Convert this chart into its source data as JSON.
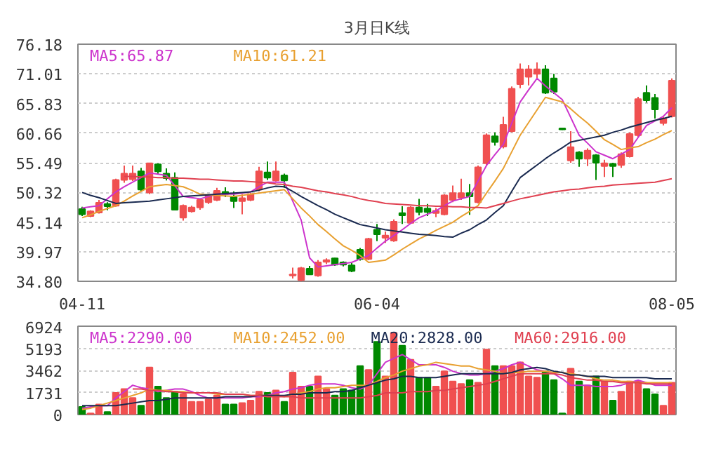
{
  "chart_data": [
    {
      "type": "candlestick",
      "title": "3月日K线",
      "grid": "y",
      "ylim": [
        34.8,
        76.18
      ],
      "yticks": [
        {
          "value": 34.8,
          "label": "34.80"
        },
        39.97,
        45.14,
        50.32,
        55.49,
        60.66,
        65.83,
        71.01,
        76.18
      ],
      "categories": [
        "04-11",
        null,
        null,
        null,
        null,
        null,
        null,
        null,
        null,
        null,
        null,
        null,
        null,
        null,
        null,
        null,
        null,
        null,
        null,
        null,
        null,
        null,
        null,
        null,
        null,
        null,
        null,
        null,
        null,
        null,
        null,
        null,
        null,
        null,
        null,
        "06-04",
        null,
        null,
        null,
        null,
        null,
        null,
        null,
        null,
        null,
        null,
        null,
        null,
        null,
        null,
        null,
        null,
        null,
        null,
        null,
        null,
        null,
        null,
        null,
        null,
        null,
        null,
        null,
        null,
        null,
        null,
        null,
        null,
        null,
        null,
        "08-05"
      ],
      "ohlc": [
        [
          47.4,
          47.8,
          46.2,
          46.5
        ],
        [
          46.2,
          47.2,
          46.0,
          47.0
        ],
        [
          46.8,
          49.0,
          46.6,
          48.5
        ],
        [
          48.3,
          48.6,
          47.2,
          47.9
        ],
        [
          48.0,
          52.7,
          47.8,
          52.5
        ],
        [
          52.5,
          55.0,
          52.0,
          53.6
        ],
        [
          52.6,
          55.0,
          52.3,
          53.6
        ],
        [
          54.0,
          54.6,
          50.5,
          50.8
        ],
        [
          50.3,
          55.5,
          50.0,
          55.4
        ],
        [
          55.2,
          55.4,
          53.5,
          54.0
        ],
        [
          53.6,
          54.5,
          52.4,
          52.8
        ],
        [
          52.9,
          53.8,
          47.2,
          47.3
        ],
        [
          45.9,
          48.2,
          45.4,
          48.0
        ],
        [
          47.0,
          48.0,
          46.8,
          47.7
        ],
        [
          47.7,
          49.2,
          47.3,
          49.0
        ],
        [
          48.6,
          50.0,
          48.3,
          49.8
        ],
        [
          49.0,
          51.1,
          48.8,
          50.6
        ],
        [
          50.4,
          51.2,
          49.5,
          50.0
        ],
        [
          49.5,
          50.5,
          47.6,
          48.8
        ],
        [
          48.8,
          50.0,
          46.5,
          49.3
        ],
        [
          49.0,
          50.2,
          48.8,
          50.0
        ],
        [
          50.8,
          54.8,
          50.5,
          54.0
        ],
        [
          53.8,
          55.7,
          52.5,
          52.9
        ],
        [
          52.4,
          55.7,
          52.2,
          54.0
        ],
        [
          53.3,
          53.6,
          51.1,
          52.4
        ],
        [
          35.8,
          37.2,
          35.3,
          36.0
        ],
        [
          35.0,
          37.3,
          34.8,
          37.1
        ],
        [
          37.0,
          37.5,
          35.9,
          36.0
        ],
        [
          35.8,
          38.5,
          35.6,
          38.1
        ],
        [
          38.2,
          38.8,
          37.8,
          38.5
        ],
        [
          38.8,
          38.9,
          37.5,
          37.7
        ],
        [
          38.1,
          38.3,
          37.4,
          37.7
        ],
        [
          37.6,
          38.0,
          36.4,
          36.6
        ],
        [
          40.3,
          40.6,
          38.4,
          38.7
        ],
        [
          38.7,
          42.4,
          38.5,
          42.2
        ],
        [
          43.8,
          44.8,
          41.8,
          43.0
        ],
        [
          42.4,
          43.5,
          41.5,
          42.8
        ],
        [
          41.9,
          45.6,
          41.7,
          45.2
        ],
        [
          46.7,
          47.9,
          44.8,
          46.3
        ],
        [
          45.0,
          47.9,
          44.9,
          47.7
        ],
        [
          47.7,
          49.2,
          46.3,
          46.9
        ],
        [
          47.5,
          48.3,
          46.2,
          46.9
        ],
        [
          46.7,
          47.6,
          46.0,
          47.1
        ],
        [
          46.5,
          50.0,
          46.3,
          49.8
        ],
        [
          49.0,
          51.5,
          48.6,
          50.2
        ],
        [
          49.4,
          52.7,
          49.0,
          50.2
        ],
        [
          50.2,
          51.8,
          46.4,
          49.6
        ],
        [
          48.6,
          55.0,
          48.4,
          54.7
        ],
        [
          55.4,
          60.6,
          55.0,
          60.3
        ],
        [
          60.1,
          60.8,
          58.5,
          59.1
        ],
        [
          58.3,
          63.5,
          58.0,
          62.1
        ],
        [
          61.0,
          68.8,
          60.8,
          68.4
        ],
        [
          69.2,
          72.8,
          68.5,
          71.8
        ],
        [
          70.5,
          72.5,
          69.0,
          71.8
        ],
        [
          71.0,
          73.0,
          70.2,
          71.8
        ],
        [
          71.8,
          72.5,
          67.5,
          67.7
        ],
        [
          70.2,
          71.0,
          67.5,
          67.9
        ],
        [
          61.5,
          61.6,
          61.2,
          61.3
        ],
        [
          55.9,
          61.0,
          55.5,
          58.2
        ],
        [
          57.3,
          57.5,
          54.8,
          56.2
        ],
        [
          56.2,
          58.0,
          54.9,
          57.6
        ],
        [
          56.8,
          57.0,
          52.5,
          55.5
        ],
        [
          54.9,
          56.0,
          53.0,
          55.4
        ],
        [
          55.3,
          55.5,
          53.0,
          54.9
        ],
        [
          55.1,
          57.3,
          54.6,
          57.0
        ],
        [
          56.6,
          60.8,
          56.4,
          60.5
        ],
        [
          60.3,
          67.0,
          60.0,
          66.6
        ],
        [
          67.7,
          69.0,
          66.0,
          66.4
        ],
        [
          66.8,
          67.5,
          63.2,
          64.8
        ],
        [
          62.4,
          63.5,
          62.0,
          63.2
        ],
        [
          63.6,
          70.2,
          63.4,
          69.8
        ]
      ],
      "colors": [
        "#008800",
        "#f05050",
        "#f05050",
        "#008800",
        "#f05050",
        "#f05050",
        "#f05050",
        "#008800",
        "#f05050",
        "#008800",
        "#008800",
        "#008800",
        "#f05050",
        "#f05050",
        "#f05050",
        "#f05050",
        "#f05050",
        "#008800",
        "#008800",
        "#f05050",
        "#f05050",
        "#f05050",
        "#008800",
        "#f05050",
        "#008800",
        "#f05050",
        "#f05050",
        "#008800",
        "#f05050",
        "#f05050",
        "#008800",
        "#008800",
        "#008800",
        "#008800",
        "#f05050",
        "#008800",
        "#f05050",
        "#f05050",
        "#008800",
        "#f05050",
        "#008800",
        "#008800",
        "#f05050",
        "#f05050",
        "#f05050",
        "#f05050",
        "#008800",
        "#f05050",
        "#f05050",
        "#008800",
        "#f05050",
        "#f05050",
        "#f05050",
        "#f05050",
        "#f05050",
        "#008800",
        "#008800",
        "#008800",
        "#f05050",
        "#008800",
        "#f05050",
        "#008800",
        "#f05050",
        "#008800",
        "#f05050",
        "#f05050",
        "#f05050",
        "#008800",
        "#008800",
        "#f05050",
        "#f05050"
      ],
      "series": [
        {
          "type": "line",
          "name": "MA5:65.87",
          "color": "#cc33cc",
          "values": [
            47.6,
            47.8,
            48.0,
            49.2,
            50.4,
            51.3,
            52.1,
            52.9,
            53.7,
            53.5,
            53.3,
            51.5,
            49.6,
            49.4,
            49.2,
            49.6,
            50.0,
            50.0,
            50.0,
            50.2,
            50.4,
            51.3,
            52.1,
            52.1,
            52.1,
            48.8,
            45.5,
            38.9,
            37.3,
            37.5,
            37.7,
            37.9,
            38.1,
            38.7,
            39.3,
            40.6,
            41.8,
            42.8,
            43.8,
            44.9,
            45.9,
            46.5,
            47.1,
            48.0,
            48.8,
            49.2,
            49.6,
            52.3,
            55.0,
            56.9,
            58.7,
            62.4,
            66.1,
            68.2,
            70.2,
            68.9,
            67.7,
            66.5,
            63.4,
            60.3,
            58.9,
            57.4,
            56.8,
            56.2,
            57.0,
            57.8,
            59.9,
            62.0,
            62.8,
            63.6,
            65.1
          ]
        },
        {
          "type": "line",
          "name": "MA10:61.21",
          "color": "#e8a030",
          "values": [
            45.9,
            46.4,
            47.0,
            47.5,
            48.0,
            48.8,
            49.7,
            50.5,
            51.3,
            51.5,
            51.7,
            51.5,
            51.3,
            50.7,
            50.0,
            49.9,
            49.8,
            49.7,
            49.6,
            49.8,
            50.0,
            50.2,
            50.4,
            50.6,
            50.8,
            49.2,
            47.6,
            46.2,
            44.7,
            43.5,
            42.2,
            41.0,
            40.2,
            39.3,
            38.1,
            38.3,
            38.5,
            39.4,
            40.4,
            41.3,
            42.2,
            42.9,
            43.7,
            44.4,
            45.1,
            46.1,
            47.0,
            48.0,
            50.2,
            52.3,
            54.5,
            57.4,
            60.3,
            62.5,
            64.7,
            66.9,
            66.5,
            66.1,
            64.9,
            63.6,
            62.4,
            61.0,
            59.5,
            58.7,
            57.8,
            58.1,
            58.3,
            59.0,
            59.6,
            60.4,
            61.1
          ]
        },
        {
          "type": "line",
          "color": "#1a2a50",
          "values": [
            50.3,
            49.8,
            49.4,
            48.9,
            48.4,
            48.5,
            48.6,
            48.7,
            48.8,
            49.0,
            49.2,
            49.4,
            49.6,
            49.7,
            49.8,
            49.9,
            50.0,
            50.1,
            50.2,
            50.3,
            50.4,
            50.7,
            51.1,
            51.4,
            51.3,
            50.5,
            49.6,
            48.8,
            48.0,
            47.3,
            46.5,
            45.9,
            45.3,
            44.7,
            44.4,
            44.1,
            43.8,
            43.6,
            43.4,
            43.2,
            43.0,
            42.9,
            42.8,
            42.6,
            42.5,
            43.2,
            43.8,
            44.7,
            45.5,
            46.8,
            48.0,
            50.5,
            52.9,
            54.0,
            55.1,
            56.2,
            57.2,
            58.1,
            59.1,
            59.4,
            59.7,
            60.0,
            60.3,
            60.8,
            61.2,
            61.7,
            62.1,
            62.5,
            62.9,
            63.2,
            63.6
          ]
        },
        {
          "type": "line",
          "color": "#e04050",
          "values": [
            null,
            null,
            null,
            null,
            null,
            53.1,
            53.1,
            53.0,
            53.0,
            52.9,
            52.9,
            52.8,
            52.8,
            52.7,
            52.6,
            52.6,
            52.5,
            52.4,
            52.3,
            52.3,
            52.2,
            52.1,
            52.0,
            51.8,
            51.7,
            51.4,
            51.2,
            50.9,
            50.6,
            50.4,
            50.1,
            49.9,
            49.6,
            49.2,
            48.9,
            48.7,
            48.4,
            48.3,
            48.2,
            48.1,
            48.0,
            48.0,
            47.9,
            47.9,
            47.8,
            47.8,
            47.7,
            47.7,
            47.6,
            48.0,
            48.4,
            48.8,
            49.2,
            49.5,
            49.8,
            50.1,
            50.4,
            50.6,
            50.8,
            50.9,
            51.1,
            51.3,
            51.4,
            51.6,
            51.7,
            51.8,
            51.9,
            52.0,
            52.1,
            52.4,
            52.7
          ]
        }
      ]
    },
    {
      "type": "bar",
      "grid": "y",
      "tick_labels": "y",
      "ylim": [
        0,
        6924
      ],
      "yticks": [
        0,
        1731,
        3462,
        5193,
        6924
      ],
      "categories": [
        null,
        null,
        null,
        null,
        null,
        null,
        null,
        null,
        null,
        null,
        null,
        null,
        null,
        null,
        null,
        null,
        null,
        null,
        null,
        null,
        null,
        null,
        null,
        null,
        null,
        null,
        null,
        null,
        null,
        null,
        null,
        null,
        null,
        null,
        null,
        null,
        null,
        null,
        null,
        null,
        null,
        null,
        null,
        null,
        null,
        null,
        null,
        null,
        null,
        null,
        null,
        null,
        null,
        null,
        null,
        null,
        null,
        null,
        null,
        null,
        null,
        null,
        null,
        null,
        null,
        null,
        null,
        null,
        null,
        null,
        null
      ],
      "values": [
        600,
        100,
        800,
        200,
        1700,
        2000,
        1300,
        700,
        3700,
        2200,
        1300,
        1800,
        1600,
        1000,
        1000,
        1200,
        1500,
        800,
        800,
        900,
        1100,
        1800,
        1700,
        1900,
        1000,
        3300,
        2200,
        2200,
        3000,
        2000,
        1500,
        2000,
        1900,
        3800,
        3500,
        5700,
        3000,
        6400,
        5400,
        4300,
        2900,
        2900,
        2200,
        3400,
        2600,
        2400,
        2700,
        2500,
        5100,
        3800,
        3800,
        3800,
        4100,
        3000,
        2900,
        3400,
        2700,
        100,
        3600,
        2600,
        2300,
        3000,
        2600,
        1100,
        1800,
        2600,
        2600,
        2000,
        1600,
        700,
        2500
      ],
      "colors": [
        "#008800",
        "#f05050",
        "#f05050",
        "#008800",
        "#f05050",
        "#f05050",
        "#f05050",
        "#008800",
        "#f05050",
        "#008800",
        "#008800",
        "#008800",
        "#f05050",
        "#f05050",
        "#f05050",
        "#f05050",
        "#f05050",
        "#008800",
        "#008800",
        "#f05050",
        "#f05050",
        "#f05050",
        "#008800",
        "#f05050",
        "#008800",
        "#f05050",
        "#f05050",
        "#008800",
        "#f05050",
        "#f05050",
        "#008800",
        "#008800",
        "#008800",
        "#008800",
        "#f05050",
        "#008800",
        "#f05050",
        "#f05050",
        "#008800",
        "#f05050",
        "#008800",
        "#008800",
        "#f05050",
        "#f05050",
        "#f05050",
        "#f05050",
        "#008800",
        "#f05050",
        "#f05050",
        "#008800",
        "#f05050",
        "#f05050",
        "#f05050",
        "#f05050",
        "#f05050",
        "#008800",
        "#008800",
        "#008800",
        "#f05050",
        "#008800",
        "#f05050",
        "#008800",
        "#f05050",
        "#008800",
        "#f05050",
        "#f05050",
        "#f05050",
        "#008800",
        "#008800",
        "#f05050",
        "#f05050"
      ],
      "series": [
        {
          "type": "line",
          "name": "MA5:2290.00",
          "color": "#cc33cc",
          "values": [
            500,
            600,
            700,
            700,
            1300,
            1800,
            2300,
            2100,
            2000,
            1800,
            1900,
            2000,
            2000,
            1800,
            1500,
            1300,
            1300,
            1300,
            1300,
            1300,
            1400,
            1400,
            1500,
            1700,
            1800,
            2000,
            2100,
            2300,
            2400,
            2400,
            2400,
            2300,
            2100,
            2000,
            2300,
            3200,
            4100,
            4400,
            4700,
            4300,
            3900,
            3900,
            3900,
            3700,
            3400,
            3200,
            3100,
            3100,
            3200,
            3400,
            3600,
            3900,
            4100,
            3800,
            3500,
            3400,
            3200,
            2800,
            2300,
            2300,
            2300,
            2200,
            2200,
            2200,
            2300,
            2500,
            2700,
            2500,
            2300,
            2300,
            2300
          ]
        },
        {
          "type": "line",
          "name": "MA10:2452.00",
          "color": "#e8a030",
          "values": [
            400,
            500,
            700,
            900,
            1100,
            1300,
            1500,
            1700,
            2000,
            1900,
            1900,
            1800,
            1800,
            1700,
            1700,
            1700,
            1600,
            1600,
            1600,
            1600,
            1500,
            1500,
            1500,
            1500,
            1400,
            1600,
            1700,
            1800,
            2000,
            2100,
            2100,
            2200,
            2300,
            2300,
            2300,
            2600,
            2900,
            3100,
            3400,
            3600,
            3800,
            3900,
            4100,
            4000,
            3900,
            3800,
            3800,
            3600,
            3500,
            3400,
            3200,
            3300,
            3300,
            3400,
            3400,
            3400,
            3300,
            3300,
            3200,
            3100,
            3000,
            2800,
            2700,
            2700,
            2600,
            2600,
            2500,
            2500,
            2500,
            2500,
            2500
          ]
        },
        {
          "type": "line",
          "name": "MA20:2828.00",
          "color": "#1a2a50",
          "values": [
            700,
            700,
            700,
            700,
            700,
            800,
            900,
            1000,
            1100,
            1100,
            1200,
            1300,
            1300,
            1300,
            1300,
            1300,
            1300,
            1400,
            1400,
            1400,
            1400,
            1500,
            1500,
            1500,
            1500,
            1600,
            1600,
            1700,
            1700,
            1700,
            1800,
            1800,
            1900,
            2100,
            2300,
            2500,
            2700,
            2800,
            3000,
            3000,
            2900,
            2900,
            2900,
            3000,
            3100,
            3200,
            3200,
            3200,
            3200,
            3200,
            3200,
            3300,
            3500,
            3600,
            3700,
            3600,
            3400,
            3300,
            3100,
            3100,
            3000,
            3000,
            3000,
            2900,
            2900,
            2900,
            2900,
            2900,
            2800,
            2800,
            2800
          ]
        },
        {
          "type": "line",
          "name": "MA60:2916.00",
          "color": "#e04050",
          "values": [
            null,
            null,
            null,
            null,
            null,
            null,
            2000,
            2000,
            1900,
            1900,
            1800,
            1800,
            1700,
            1700,
            1700,
            1700,
            1700,
            1600,
            1600,
            1600,
            1500,
            1500,
            1400,
            1400,
            1400,
            1400,
            1300,
            1300,
            1300,
            1300,
            1300,
            1300,
            1300,
            1300,
            1400,
            1500,
            1700,
            1700,
            1700,
            1800,
            1800,
            1800,
            1900,
            1900,
            2000,
            2100,
            2200,
            2300,
            2400,
            2600,
            2800,
            3000,
            3200,
            3200,
            3200,
            3200,
            3200,
            3100,
            2900,
            2800,
            2700,
            2700,
            2600,
            2600,
            2500,
            2500,
            2500,
            2400,
            2400,
            2400,
            2400
          ]
        }
      ]
    }
  ]
}
